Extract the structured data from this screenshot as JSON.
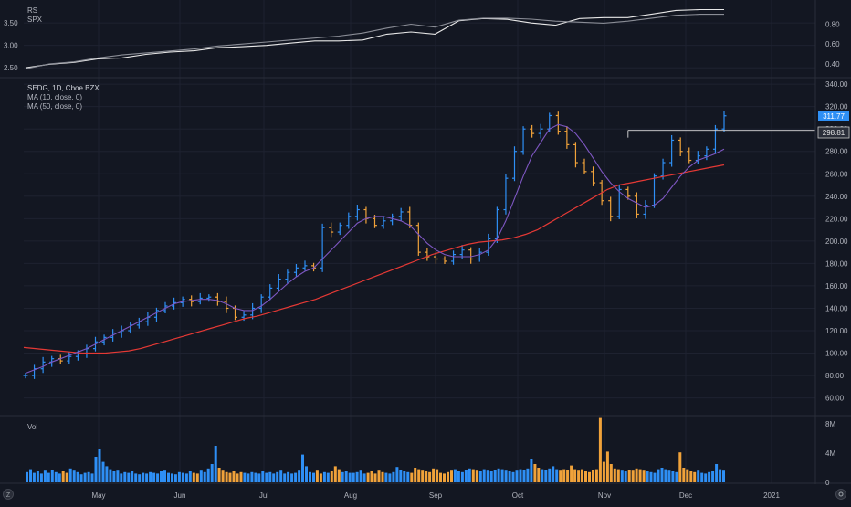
{
  "symbol_line": "SEDG, 1D, Cboe BZX",
  "ma_labels": [
    "MA (10, close, 0)",
    "MA (50, close, 0)"
  ],
  "rs_labels": [
    "RS",
    "SPX"
  ],
  "vol_label": "Vol",
  "colors": {
    "background": "#131722",
    "grid": "#1e2230",
    "up": "#2e8ff5",
    "down": "#f0a23a",
    "ma10": "#7e57c2",
    "ma50": "#e53935",
    "last_price_tag": "#2e8ff5",
    "line": "#e8e8e8",
    "spx_line": "#8a8d96"
  },
  "price_labels": {
    "last": "311.77",
    "marker": "298.81"
  },
  "footer": {
    "left_icon": "zoom-icon",
    "right_icon": "settings-icon"
  },
  "chart_data": [
    {
      "type": "line",
      "panel": "rs",
      "title": "RS",
      "left_ticks": [
        "3.50",
        "3.00",
        "2.50"
      ],
      "right_ticks": [
        "0.80",
        "0.60",
        "0.40"
      ],
      "left_ylim": [
        2.3,
        3.85
      ],
      "right_ylim": [
        0.27,
        0.97
      ],
      "series": [
        {
          "name": "RS",
          "axis": "left",
          "values": [
            2.5,
            2.58,
            2.62,
            2.7,
            2.72,
            2.8,
            2.85,
            2.88,
            2.95,
            2.97,
            3.0,
            3.05,
            3.1,
            3.1,
            3.12,
            3.25,
            3.3,
            3.25,
            3.55,
            3.6,
            3.58,
            3.5,
            3.45,
            3.6,
            3.62,
            3.62,
            3.7,
            3.78,
            3.8,
            3.8
          ]
        },
        {
          "name": "SPX",
          "axis": "right",
          "values": [
            0.35,
            0.4,
            0.42,
            0.46,
            0.49,
            0.51,
            0.53,
            0.55,
            0.58,
            0.6,
            0.62,
            0.64,
            0.66,
            0.68,
            0.71,
            0.76,
            0.8,
            0.77,
            0.84,
            0.86,
            0.86,
            0.85,
            0.83,
            0.82,
            0.81,
            0.83,
            0.86,
            0.89,
            0.9,
            0.9
          ]
        }
      ]
    },
    {
      "type": "ohlc",
      "panel": "price",
      "title": "SEDG, 1D, Cboe BZX",
      "y_ticks": [
        60,
        80,
        100,
        120,
        140,
        160,
        180,
        200,
        220,
        240,
        260,
        280,
        300,
        320,
        340
      ],
      "ylim": [
        45,
        345
      ],
      "x_labels": [
        "May",
        "Jun",
        "Jul",
        "Aug",
        "Sep",
        "Oct",
        "Nov",
        "Dec",
        "2021"
      ],
      "last_price": 311.77,
      "marker_price": 298.81,
      "close": [
        80,
        86,
        92,
        95,
        93,
        97,
        100,
        104,
        110,
        114,
        118,
        120,
        125,
        128,
        132,
        138,
        142,
        145,
        148,
        146,
        149,
        150,
        146,
        140,
        132,
        134,
        140,
        150,
        158,
        166,
        172,
        176,
        178,
        176,
        212,
        208,
        214,
        222,
        228,
        220,
        214,
        218,
        222,
        226,
        214,
        190,
        186,
        184,
        182,
        188,
        192,
        184,
        190,
        202,
        228,
        256,
        280,
        300,
        296,
        300,
        312,
        298,
        286,
        270,
        262,
        252,
        236,
        222,
        246,
        240,
        224,
        232,
        258,
        270,
        290,
        280,
        272,
        276,
        282,
        300,
        311.77
      ],
      "ma10": [
        82,
        85,
        88,
        92,
        95,
        98,
        101,
        104,
        108,
        112,
        116,
        120,
        124,
        128,
        132,
        136,
        140,
        144,
        146,
        147,
        148,
        148,
        147,
        144,
        140,
        138,
        138,
        142,
        148,
        155,
        162,
        168,
        173,
        176,
        184,
        192,
        200,
        208,
        216,
        220,
        222,
        222,
        220,
        218,
        214,
        206,
        198,
        192,
        188,
        186,
        186,
        186,
        188,
        192,
        202,
        218,
        238,
        258,
        276,
        288,
        300,
        304,
        302,
        296,
        286,
        274,
        262,
        252,
        244,
        238,
        234,
        230,
        232,
        238,
        248,
        258,
        266,
        272,
        275,
        278,
        282
      ],
      "ma50": [
        105,
        104,
        103,
        102,
        101,
        100,
        100,
        100,
        101,
        102,
        104,
        107,
        110,
        113,
        116,
        119,
        122,
        125,
        128,
        131,
        133,
        136,
        139,
        142,
        145,
        148,
        152,
        156,
        160,
        164,
        168,
        172,
        176,
        180,
        184,
        188,
        191,
        194,
        197,
        199,
        200,
        201,
        203,
        206,
        210,
        216,
        222,
        228,
        234,
        240,
        246,
        250,
        252,
        254,
        256,
        258,
        260,
        262,
        264,
        266,
        268
      ]
    },
    {
      "type": "bar",
      "panel": "volume",
      "title": "Vol",
      "y_ticks": [
        "8M",
        "4M",
        "0"
      ],
      "ylim": [
        0,
        9000000
      ],
      "values_millions": [
        1.4,
        1.8,
        1.3,
        1.5,
        1.2,
        1.6,
        1.3,
        1.7,
        1.4,
        1.2,
        1.5,
        1.3,
        1.9,
        1.6,
        1.4,
        1.1,
        1.3,
        1.4,
        1.2,
        3.5,
        4.5,
        2.8,
        2.2,
        1.8,
        1.5,
        1.6,
        1.2,
        1.4,
        1.3,
        1.5,
        1.2,
        1.1,
        1.3,
        1.2,
        1.4,
        1.3,
        1.2,
        1.5,
        1.6,
        1.3,
        1.2,
        1.1,
        1.4,
        1.3,
        1.2,
        1.5,
        1.3,
        1.2,
        1.6,
        1.4,
        1.9,
        2.5,
        5,
        2,
        1.6,
        1.4,
        1.3,
        1.5,
        1.2,
        1.4,
        1.3,
        1.2,
        1.4,
        1.3,
        1.2,
        1.5,
        1.3,
        1.4,
        1.2,
        1.4,
        1.6,
        1.2,
        1.4,
        1.2,
        1.3,
        1.6,
        3.8,
        2.2,
        1.4,
        1.3,
        1.6,
        1.2,
        1.4,
        1.3,
        1.5,
        2.2,
        1.8,
        1.4,
        1.5,
        1.3,
        1.3,
        1.4,
        1.6,
        1.2,
        1.3,
        1.5,
        1.2,
        1.6,
        1.4,
        1.3,
        1.2,
        1.4,
        2.1,
        1.7,
        1.5,
        1.4,
        1.3,
        2.0,
        1.8,
        1.6,
        1.5,
        1.4,
        1.9,
        1.8,
        1.3,
        1.2,
        1.4,
        1.6,
        1.8,
        1.5,
        1.4,
        1.7,
        1.9,
        1.8,
        1.6,
        1.5,
        1.8,
        1.6,
        1.5,
        1.7,
        1.9,
        1.8,
        1.6,
        1.5,
        1.4,
        1.6,
        1.8,
        1.7,
        1.9,
        3.2,
        2.5,
        2.0,
        1.8,
        1.7,
        1.9,
        2.2,
        1.8,
        1.6,
        1.8,
        1.7,
        2.3,
        1.8,
        1.6,
        1.8,
        1.5,
        1.4,
        1.7,
        1.8,
        8.8,
        2.8,
        4.2,
        2.5,
        1.9,
        1.8,
        1.6,
        1.5,
        1.7,
        1.6,
        1.9,
        1.8,
        1.6,
        1.5,
        1.4,
        1.3,
        1.8,
        2.0,
        1.8,
        1.6,
        1.5,
        1.4,
        4.1,
        2.0,
        1.8,
        1.5,
        1.4,
        1.6,
        1.3,
        1.2,
        1.4,
        1.5,
        2.5,
        1.8,
        1.6
      ]
    }
  ]
}
